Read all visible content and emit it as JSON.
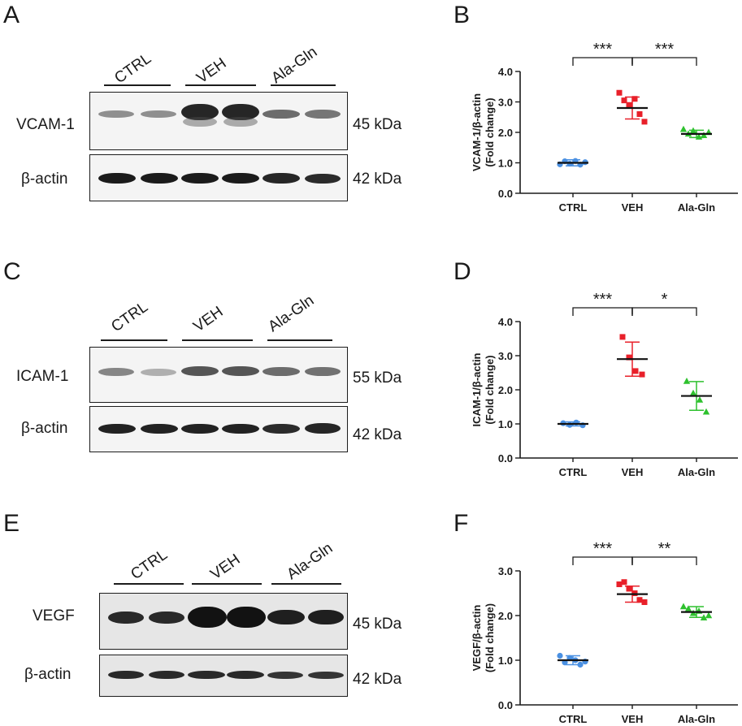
{
  "panel_letters": [
    "A",
    "B",
    "C",
    "D",
    "E",
    "F"
  ],
  "kda": {
    "vcam": "45 kDa",
    "actin": "42 kDa",
    "icam": "55 kDa",
    "vegf": "45 kDa"
  },
  "blot_labels": {
    "vcam": "VCAM-1",
    "actin": "β-actin",
    "icam": "ICAM-1",
    "vegf": "VEGF"
  },
  "groups": [
    "CTRL",
    "VEH",
    "Ala-Gln"
  ],
  "chart_data": [
    {
      "type": "scatter",
      "panel": "B",
      "ylabel": "VCAM-1/β-actin\n(Fold change)",
      "categories": [
        "CTRL",
        "VEH",
        "Ala-Gln"
      ],
      "ylim": [
        0,
        4
      ],
      "yticks": [
        "0.0",
        "1.0",
        "2.0",
        "3.0",
        "4.0"
      ],
      "series": [
        {
          "category": "CTRL",
          "color": "#4a90e2",
          "marker": "circle",
          "mean": 1.0,
          "sd": 0.1,
          "points": [
            0.95,
            1.05,
            0.97,
            1.06,
            0.94,
            1.02
          ]
        },
        {
          "category": "VEH",
          "color": "#e8202a",
          "marker": "square",
          "mean": 2.8,
          "sd": 0.36,
          "points": [
            3.3,
            3.05,
            2.9,
            3.1,
            2.6,
            2.35
          ]
        },
        {
          "category": "Ala-Gln",
          "color": "#2ec12e",
          "marker": "triangle",
          "mean": 1.95,
          "sd": 0.12,
          "points": [
            2.1,
            1.95,
            2.05,
            1.85,
            1.9,
            2.0
          ]
        }
      ],
      "annotations": [
        {
          "text": "***",
          "from": "CTRL",
          "to": "VEH"
        },
        {
          "text": "***",
          "from": "VEH",
          "to": "Ala-Gln"
        }
      ]
    },
    {
      "type": "scatter",
      "panel": "D",
      "ylabel": "ICAM-1/β-actin\n(Fold change)",
      "categories": [
        "CTRL",
        "VEH",
        "Ala-Gln"
      ],
      "ylim": [
        0,
        4
      ],
      "yticks": [
        "0.0",
        "1.0",
        "2.0",
        "3.0",
        "4.0"
      ],
      "series": [
        {
          "category": "CTRL",
          "color": "#4a90e2",
          "marker": "circle",
          "mean": 1.0,
          "sd": 0.06,
          "points": [
            1.02,
            0.97,
            1.04,
            0.96
          ]
        },
        {
          "category": "VEH",
          "color": "#e8202a",
          "marker": "square",
          "mean": 2.9,
          "sd": 0.5,
          "points": [
            3.55,
            2.95,
            2.55,
            2.45
          ]
        },
        {
          "category": "Ala-Gln",
          "color": "#2ec12e",
          "marker": "triangle",
          "mean": 1.82,
          "sd": 0.42,
          "points": [
            2.25,
            1.9,
            1.7,
            1.35
          ]
        }
      ],
      "annotations": [
        {
          "text": "***",
          "from": "CTRL",
          "to": "VEH"
        },
        {
          "text": "*",
          "from": "VEH",
          "to": "Ala-Gln"
        }
      ]
    },
    {
      "type": "scatter",
      "panel": "F",
      "ylabel": "VEGF/β-actin\n(Fold change)",
      "categories": [
        "CTRL",
        "VEH",
        "Ala-Gln"
      ],
      "ylim": [
        0,
        3
      ],
      "yticks": [
        "0.0",
        "1.0",
        "2.0",
        "3.0"
      ],
      "series": [
        {
          "category": "CTRL",
          "color": "#4a90e2",
          "marker": "circle",
          "mean": 1.0,
          "sd": 0.1,
          "points": [
            1.1,
            0.95,
            1.05,
            1.0,
            0.9,
            0.97
          ]
        },
        {
          "category": "VEH",
          "color": "#e8202a",
          "marker": "square",
          "mean": 2.48,
          "sd": 0.18,
          "points": [
            2.7,
            2.75,
            2.6,
            2.5,
            2.35,
            2.3
          ]
        },
        {
          "category": "Ala-Gln",
          "color": "#2ec12e",
          "marker": "triangle",
          "mean": 2.08,
          "sd": 0.12,
          "points": [
            2.2,
            2.15,
            2.05,
            2.1,
            1.95,
            2.0
          ]
        }
      ],
      "annotations": [
        {
          "text": "***",
          "from": "CTRL",
          "to": "VEH"
        },
        {
          "text": "**",
          "from": "VEH",
          "to": "Ala-Gln"
        }
      ]
    }
  ]
}
